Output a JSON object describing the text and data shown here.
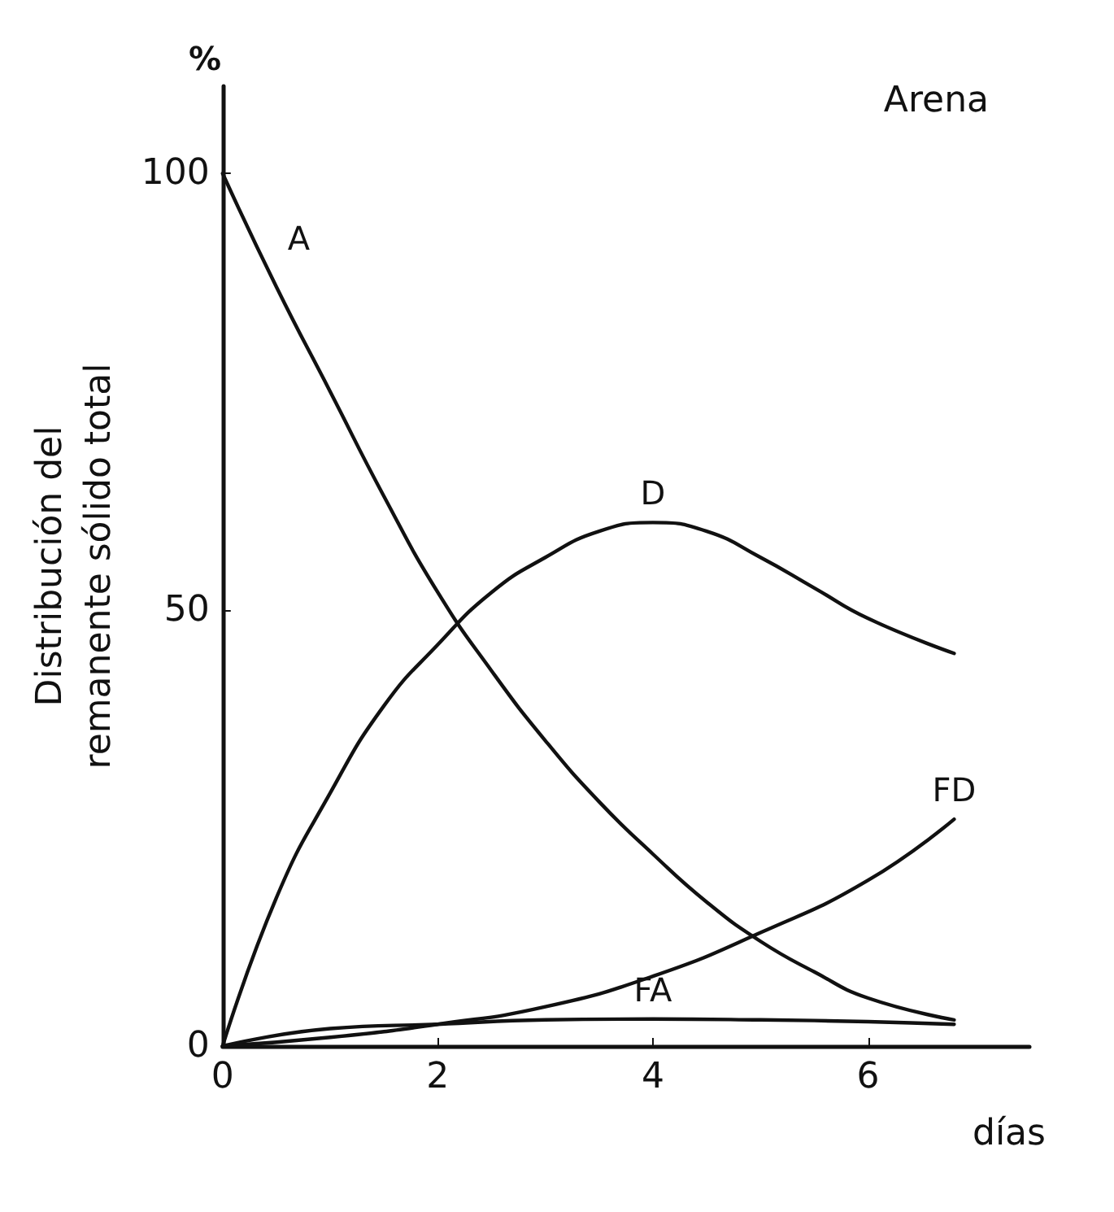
{
  "chart_data": {
    "type": "line",
    "title": "Arena",
    "xlabel": "días",
    "ylabel": "Distribución del\nremanente sólido total",
    "annotations": [
      "%"
    ],
    "xlim": [
      0,
      7.5
    ],
    "ylim": [
      0,
      110
    ],
    "xticks": [
      0,
      2,
      4,
      6
    ],
    "yticks": [
      0,
      50,
      100
    ],
    "grid": false,
    "legend": false,
    "marker": "none",
    "line_style": "solid",
    "series": [
      {
        "name": "A",
        "color": "#111111",
        "x": [
          0,
          0.5,
          1,
          1.5,
          2,
          2.5,
          3,
          3.5,
          4,
          4.5,
          5,
          5.5,
          6,
          6.8
        ],
        "values": [
          100,
          87,
          75,
          63,
          52,
          43,
          35,
          28,
          22,
          16.5,
          12,
          8.5,
          5.5,
          3
        ]
      },
      {
        "name": "D",
        "color": "#111111",
        "x": [
          0,
          0.5,
          1,
          1.5,
          2,
          2.5,
          3,
          3.5,
          4,
          4.5,
          5,
          5.5,
          6,
          6.8
        ],
        "values": [
          0,
          17,
          29,
          39,
          46,
          52,
          56,
          59,
          60,
          59,
          56,
          52.5,
          49,
          45
        ]
      },
      {
        "name": "FD",
        "color": "#111111",
        "x": [
          0,
          1,
          2,
          3,
          4,
          5,
          6,
          6.8
        ],
        "values": [
          0,
          1,
          2.5,
          4.5,
          8,
          13,
          19,
          26
        ]
      },
      {
        "name": "FA",
        "color": "#111111",
        "x": [
          0,
          1,
          2,
          3,
          4,
          5,
          6,
          6.8
        ],
        "values": [
          0,
          2,
          2.5,
          3,
          3.1,
          3,
          2.8,
          2.5
        ]
      }
    ]
  }
}
